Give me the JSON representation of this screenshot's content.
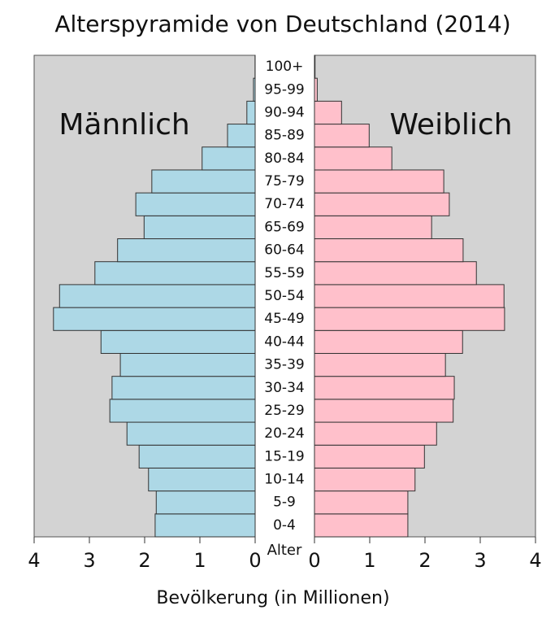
{
  "chart_data": {
    "type": "population-pyramid",
    "title": "Alterspyramide von Deutschland (2014)",
    "category_axis_label": "Alter",
    "xlabel": "Bevölkerung (in Millionen)",
    "categories": [
      "0-4",
      "5-9",
      "10-14",
      "15-19",
      "20-24",
      "25-29",
      "30-34",
      "35-39",
      "40-44",
      "45-49",
      "50-54",
      "55-59",
      "60-64",
      "65-69",
      "70-74",
      "75-79",
      "80-84",
      "85-89",
      "90-94",
      "95-99",
      "100+"
    ],
    "series": [
      {
        "name": "Männlich",
        "color": "#add8e6",
        "side": "left",
        "values": [
          1.81,
          1.79,
          1.93,
          2.1,
          2.32,
          2.63,
          2.59,
          2.44,
          2.79,
          3.65,
          3.54,
          2.9,
          2.49,
          2.01,
          2.16,
          1.87,
          0.96,
          0.5,
          0.15,
          0.03,
          0.002
        ]
      },
      {
        "name": "Weiblich",
        "color": "#ffc0cb",
        "side": "right",
        "values": [
          1.69,
          1.69,
          1.82,
          1.99,
          2.21,
          2.51,
          2.53,
          2.37,
          2.68,
          3.44,
          3.43,
          2.93,
          2.69,
          2.12,
          2.44,
          2.34,
          1.4,
          0.99,
          0.49,
          0.05,
          0.01
        ]
      }
    ],
    "xlim": [
      0,
      4
    ],
    "xticks": [
      0,
      1,
      2,
      3,
      4
    ],
    "panel_color": "#d3d3d3"
  }
}
